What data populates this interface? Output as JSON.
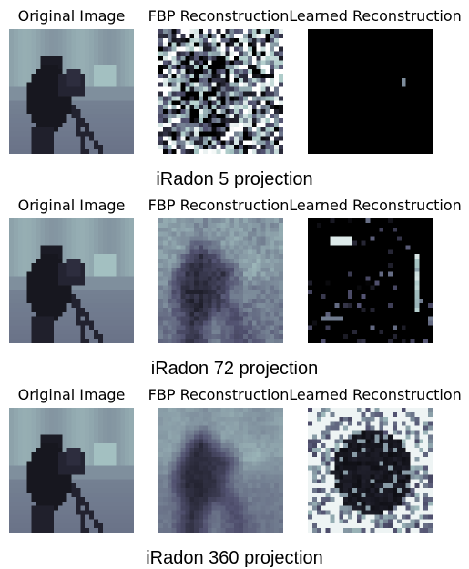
{
  "rows": [
    {
      "titles": [
        "Original Image",
        "FBP Reconstruction",
        "Learned Reconstruction"
      ],
      "caption": "iRadon 5 projection"
    },
    {
      "titles": [
        "Original Image",
        "FBP Reconstruction",
        "Learned Reconstruction"
      ],
      "caption": "iRadon 72 projection"
    },
    {
      "titles": [
        "Original Image",
        "FBP Reconstruction",
        "Learned Reconstruction"
      ],
      "caption": "iRadon 360 projection"
    }
  ],
  "colormap": "bone"
}
